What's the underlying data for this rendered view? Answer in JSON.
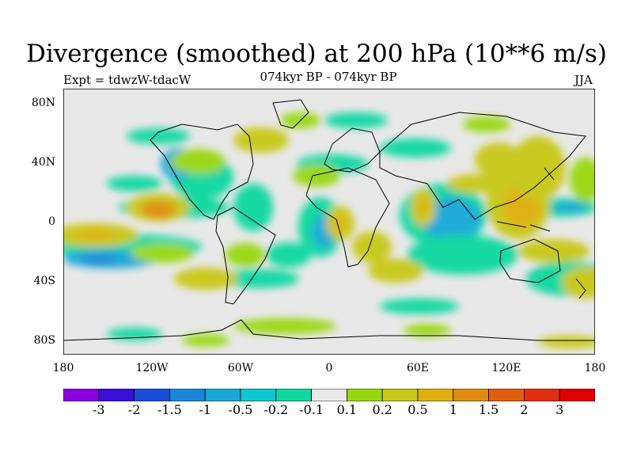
{
  "title": "Divergence (smoothed) at 200 hPa (10**6 m/s)",
  "experiment_label": "Expt = tdwzW-tdacW",
  "period_label": "074kyr BP - 074kyr BP",
  "season_label": "JJA",
  "map": {
    "projection": "cylindrical equidistant",
    "lon_range": [
      -180,
      180
    ],
    "lat_range": [
      -90,
      90
    ],
    "background": "#e8e8e8",
    "lat_ticks": [
      "80N",
      "40N",
      "0",
      "40S",
      "80S"
    ],
    "lon_ticks": [
      "180",
      "120W",
      "60W",
      "0",
      "60E",
      "120E",
      "180"
    ]
  },
  "colorbar": {
    "colors": [
      "#8a00e0",
      "#3a10d8",
      "#1a4ed8",
      "#1a86d8",
      "#18a8d8",
      "#10c8d0",
      "#10d8a0",
      "#e8e8e8",
      "#98d810",
      "#c8c818",
      "#e0b010",
      "#e08c10",
      "#e06010",
      "#e03010",
      "#e00000"
    ],
    "labels": [
      "-3",
      "-2",
      "-1.5",
      "-1",
      "-0.5",
      "-0.2",
      "-0.1",
      "0.1",
      "0.2",
      "0.5",
      "1",
      "1.5",
      "2",
      "3"
    ]
  }
}
